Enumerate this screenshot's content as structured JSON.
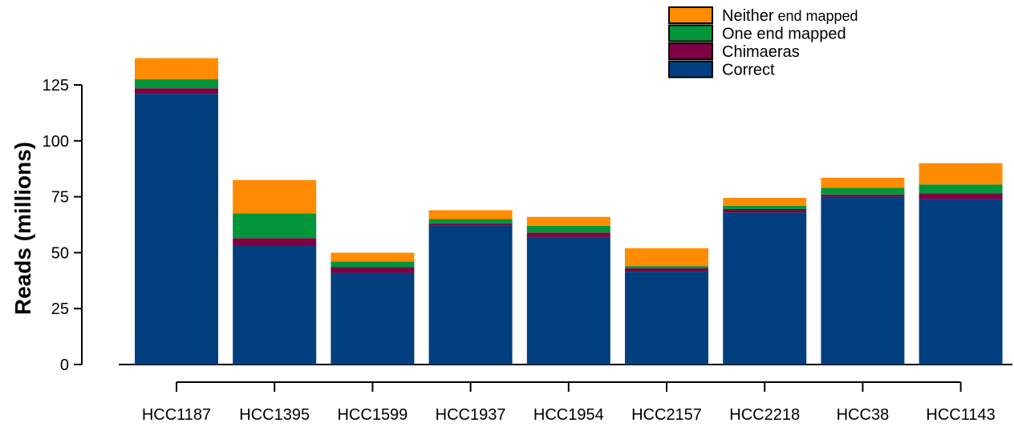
{
  "chart_data": {
    "type": "bar",
    "stacked": true,
    "categories": [
      "HCC1187",
      "HCC1395",
      "HCC1599",
      "HCC1937",
      "HCC1954",
      "HCC2157",
      "HCC2218",
      "HCC38",
      "HCC1143"
    ],
    "series": [
      {
        "name": "Correct",
        "color": "#013f7f",
        "values": [
          121,
          53,
          41,
          62,
          57,
          41.5,
          68,
          75,
          74
        ]
      },
      {
        "name": "Chimaeras",
        "color": "#7f0043",
        "values": [
          2.5,
          3.5,
          2.5,
          1,
          2,
          1.5,
          1.5,
          1,
          2.5
        ]
      },
      {
        "name": "One end mapped",
        "color": "#01963a",
        "values": [
          4,
          11,
          2.5,
          2,
          3,
          1,
          1.5,
          3,
          4
        ]
      },
      {
        "name": "Neither end mapped",
        "color": "#ff8c00",
        "values": [
          9.5,
          15,
          4,
          4,
          4,
          8,
          3.5,
          4.5,
          9.5
        ]
      }
    ],
    "title": "",
    "xlabel": "",
    "ylabel": "Reads (millions)",
    "ylim": [
      0,
      125
    ],
    "yticks": [
      0,
      25,
      50,
      75,
      100,
      125
    ],
    "grid": false,
    "legend_position": "top-right",
    "legend": [
      {
        "series": "Neither end mapped",
        "label_main": "Neither",
        "label_rest": " end mapped"
      },
      {
        "series": "One end mapped",
        "label_main": "One end mapped",
        "label_rest": ""
      },
      {
        "series": "Chimaeras",
        "label_main": "Chimaeras",
        "label_rest": ""
      },
      {
        "series": "Correct",
        "label_main": "Correct",
        "label_rest": ""
      }
    ]
  }
}
